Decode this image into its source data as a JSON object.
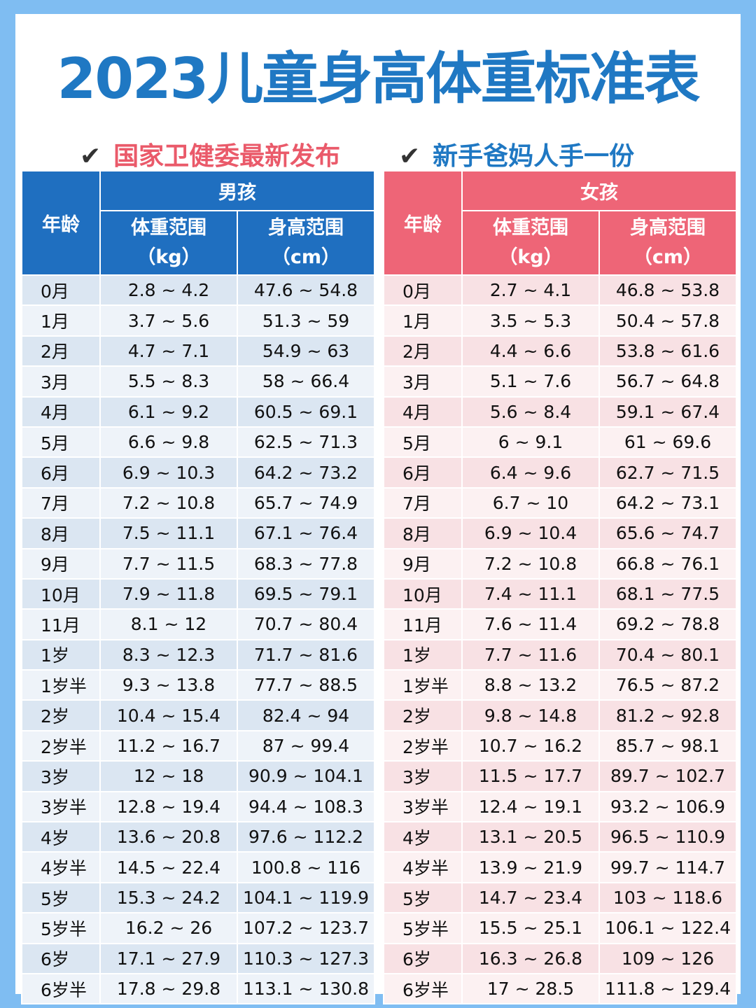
{
  "title": "2023儿童身高体重标准表",
  "subtitles": {
    "check": "✔",
    "left": "国家卫健委最新发布",
    "right": "新手爸妈人手一份"
  },
  "colors": {
    "boys_header": "#1f6fc0",
    "girls_header": "#ee6577",
    "title": "#1f78c3",
    "subtitle_left": "#ea5a6a",
    "background": "#7fbdf2"
  },
  "boys": {
    "group": "男孩",
    "age_header": "年龄",
    "weight_header": "体重范围",
    "weight_unit": "（kg）",
    "height_header": "身高范围",
    "height_unit": "（cm）",
    "rows": [
      [
        "0月",
        "2.8 ~ 4.2",
        "47.6 ~ 54.8"
      ],
      [
        "1月",
        "3.7 ~ 5.6",
        "51.3 ~ 59"
      ],
      [
        "2月",
        "4.7 ~ 7.1",
        "54.9 ~ 63"
      ],
      [
        "3月",
        "5.5 ~ 8.3",
        "58 ~ 66.4"
      ],
      [
        "4月",
        "6.1 ~ 9.2",
        "60.5 ~ 69.1"
      ],
      [
        "5月",
        "6.6 ~ 9.8",
        "62.5 ~ 71.3"
      ],
      [
        "6月",
        "6.9 ~ 10.3",
        "64.2 ~ 73.2"
      ],
      [
        "7月",
        "7.2 ~ 10.8",
        "65.7 ~ 74.9"
      ],
      [
        "8月",
        "7.5 ~ 11.1",
        "67.1 ~ 76.4"
      ],
      [
        "9月",
        "7.7 ~ 11.5",
        "68.3 ~ 77.8"
      ],
      [
        "10月",
        "7.9 ~ 11.8",
        "69.5 ~ 79.1"
      ],
      [
        "11月",
        "8.1 ~ 12",
        "70.7 ~ 80.4"
      ],
      [
        "1岁",
        "8.3 ~ 12.3",
        "71.7 ~ 81.6"
      ],
      [
        "1岁半",
        "9.3 ~ 13.8",
        "77.7 ~ 88.5"
      ],
      [
        "2岁",
        "10.4 ~ 15.4",
        "82.4 ~ 94"
      ],
      [
        "2岁半",
        "11.2 ~ 16.7",
        "87 ~ 99.4"
      ],
      [
        "3岁",
        "12 ~ 18",
        "90.9 ~ 104.1"
      ],
      [
        "3岁半",
        "12.8 ~ 19.4",
        "94.4 ~ 108.3"
      ],
      [
        "4岁",
        "13.6 ~ 20.8",
        "97.6 ~ 112.2"
      ],
      [
        "4岁半",
        "14.5 ~ 22.4",
        "100.8 ~ 116"
      ],
      [
        "5岁",
        "15.3 ~ 24.2",
        "104.1 ~ 119.9"
      ],
      [
        "5岁半",
        "16.2 ~ 26",
        "107.2 ~ 123.7"
      ],
      [
        "6岁",
        "17.1 ~ 27.9",
        "110.3 ~ 127.3"
      ],
      [
        "6岁半",
        "17.8 ~ 29.8",
        "113.1 ~ 130.8"
      ]
    ]
  },
  "girls": {
    "group": "女孩",
    "age_header": "年龄",
    "weight_header": "体重范围",
    "weight_unit": "（kg）",
    "height_header": "身高范围",
    "height_unit": "（cm）",
    "rows": [
      [
        "0月",
        "2.7 ~ 4.1",
        "46.8 ~ 53.8"
      ],
      [
        "1月",
        "3.5 ~ 5.3",
        "50.4 ~ 57.8"
      ],
      [
        "2月",
        "4.4 ~ 6.6",
        "53.8 ~ 61.6"
      ],
      [
        "3月",
        "5.1 ~ 7.6",
        "56.7 ~ 64.8"
      ],
      [
        "4月",
        "5.6 ~ 8.4",
        "59.1 ~ 67.4"
      ],
      [
        "5月",
        "6 ~ 9.1",
        "61 ~ 69.6"
      ],
      [
        "6月",
        "6.4 ~ 9.6",
        "62.7 ~ 71.5"
      ],
      [
        "7月",
        "6.7 ~ 10",
        "64.2 ~ 73.1"
      ],
      [
        "8月",
        "6.9 ~ 10.4",
        "65.6 ~ 74.7"
      ],
      [
        "9月",
        "7.2 ~ 10.8",
        "66.8 ~ 76.1"
      ],
      [
        "10月",
        "7.4 ~ 11.1",
        "68.1 ~ 77.5"
      ],
      [
        "11月",
        "7.6 ~ 11.4",
        "69.2 ~ 78.8"
      ],
      [
        "1岁",
        "7.7 ~ 11.6",
        "70.4 ~ 80.1"
      ],
      [
        "1岁半",
        "8.8 ~ 13.2",
        "76.5 ~ 87.2"
      ],
      [
        "2岁",
        "9.8 ~ 14.8",
        "81.2 ~ 92.8"
      ],
      [
        "2岁半",
        "10.7 ~ 16.2",
        "85.7 ~ 98.1"
      ],
      [
        "3岁",
        "11.5 ~ 17.7",
        "89.7 ~ 102.7"
      ],
      [
        "3岁半",
        "12.4 ~ 19.1",
        "93.2 ~ 106.9"
      ],
      [
        "4岁",
        "13.1 ~ 20.5",
        "96.5 ~ 110.9"
      ],
      [
        "4岁半",
        "13.9 ~ 21.9",
        "99.7 ~ 114.7"
      ],
      [
        "5岁",
        "14.7 ~ 23.4",
        "103 ~ 118.6"
      ],
      [
        "5岁半",
        "15.5 ~ 25.1",
        "106.1 ~ 122.4"
      ],
      [
        "6岁",
        "16.3 ~ 26.8",
        "109 ~ 126"
      ],
      [
        "6岁半",
        "17 ~ 28.5",
        "111.8 ~ 129.4"
      ]
    ]
  }
}
